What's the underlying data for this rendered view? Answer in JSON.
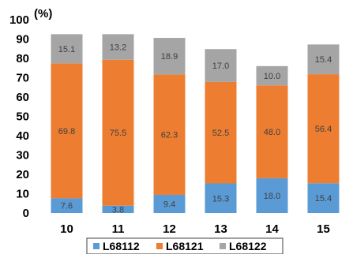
{
  "chart_data": {
    "type": "bar",
    "stacked": true,
    "unit_label": "(%)",
    "categories": [
      "10",
      "11",
      "12",
      "13",
      "14",
      "15"
    ],
    "series": [
      {
        "name": "L68112",
        "color": "#5b9bd5",
        "values": [
          7.6,
          3.8,
          9.4,
          15.3,
          18.0,
          15.4
        ]
      },
      {
        "name": "L68121",
        "color": "#ed7d31",
        "values": [
          69.8,
          75.5,
          62.3,
          52.5,
          48.0,
          56.4
        ]
      },
      {
        "name": "L68122",
        "color": "#a5a5a5",
        "values": [
          15.1,
          13.2,
          18.9,
          17.0,
          10.0,
          15.4
        ]
      }
    ],
    "ylim": [
      0,
      100
    ],
    "yticks": [
      0,
      10,
      20,
      30,
      40,
      50,
      60,
      70,
      80,
      90,
      100
    ],
    "grid": false,
    "legend_position": "bottom",
    "title": "",
    "xlabel": "",
    "ylabel": ""
  }
}
